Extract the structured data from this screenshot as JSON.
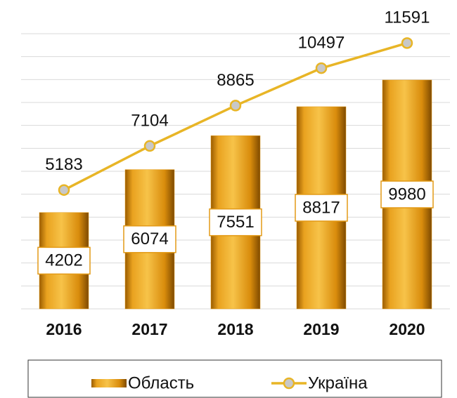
{
  "chart_data": {
    "type": "bar",
    "categories": [
      "2016",
      "2017",
      "2018",
      "2019",
      "2020"
    ],
    "series": [
      {
        "name": "Область",
        "type": "bar",
        "color": "#e39a16",
        "values": [
          4202,
          6074,
          7551,
          8817,
          9980
        ]
      },
      {
        "name": "Україна",
        "type": "line",
        "color": "#e8b526",
        "values": [
          5183,
          7104,
          8865,
          10497,
          11591
        ]
      }
    ],
    "ylim": [
      0,
      12000
    ],
    "yticks": [
      0,
      1000,
      2000,
      3000,
      4000,
      5000,
      6000,
      7000,
      8000,
      9000,
      10000,
      11000,
      12000
    ],
    "grid": true,
    "legend": "bottom"
  }
}
